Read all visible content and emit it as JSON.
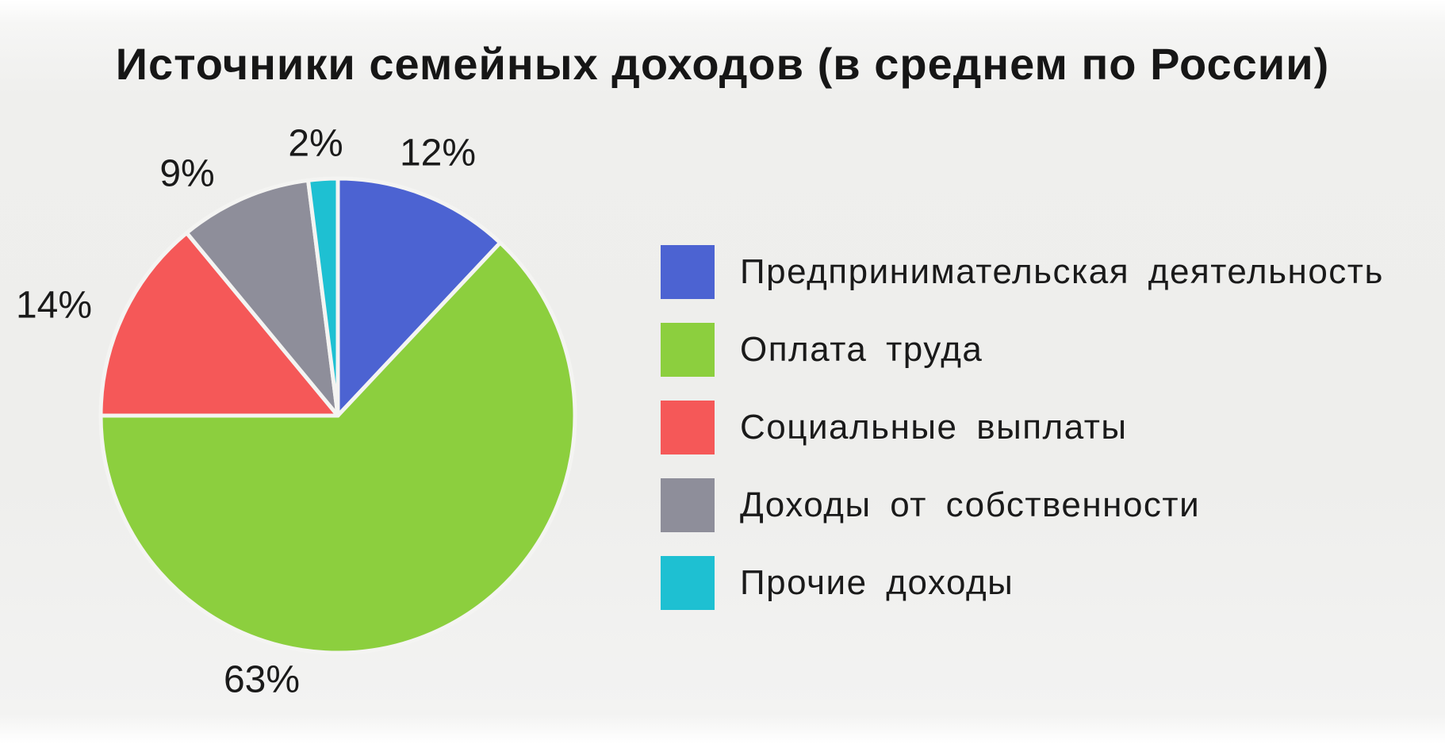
{
  "chart_data": {
    "type": "pie",
    "title": "Источники семейных доходов (в среднем по России)",
    "slices": [
      {
        "label": "Предпринимательская деятельность",
        "value": 12,
        "value_label": "12%",
        "color": "#4c63d2"
      },
      {
        "label": "Оплата труда",
        "value": 63,
        "value_label": "63%",
        "color": "#8ccf3e"
      },
      {
        "label": "Социальные выплаты",
        "value": 14,
        "value_label": "14%",
        "color": "#f55858"
      },
      {
        "label": "Доходы от собственности",
        "value": 9,
        "value_label": "9%",
        "color": "#8e8e9a"
      },
      {
        "label": "Прочие доходы",
        "value": 2,
        "value_label": "2%",
        "color": "#1ec0d2"
      }
    ],
    "start_angle": "12 o'clock",
    "direction": "clockwise",
    "legend_position": "right"
  }
}
